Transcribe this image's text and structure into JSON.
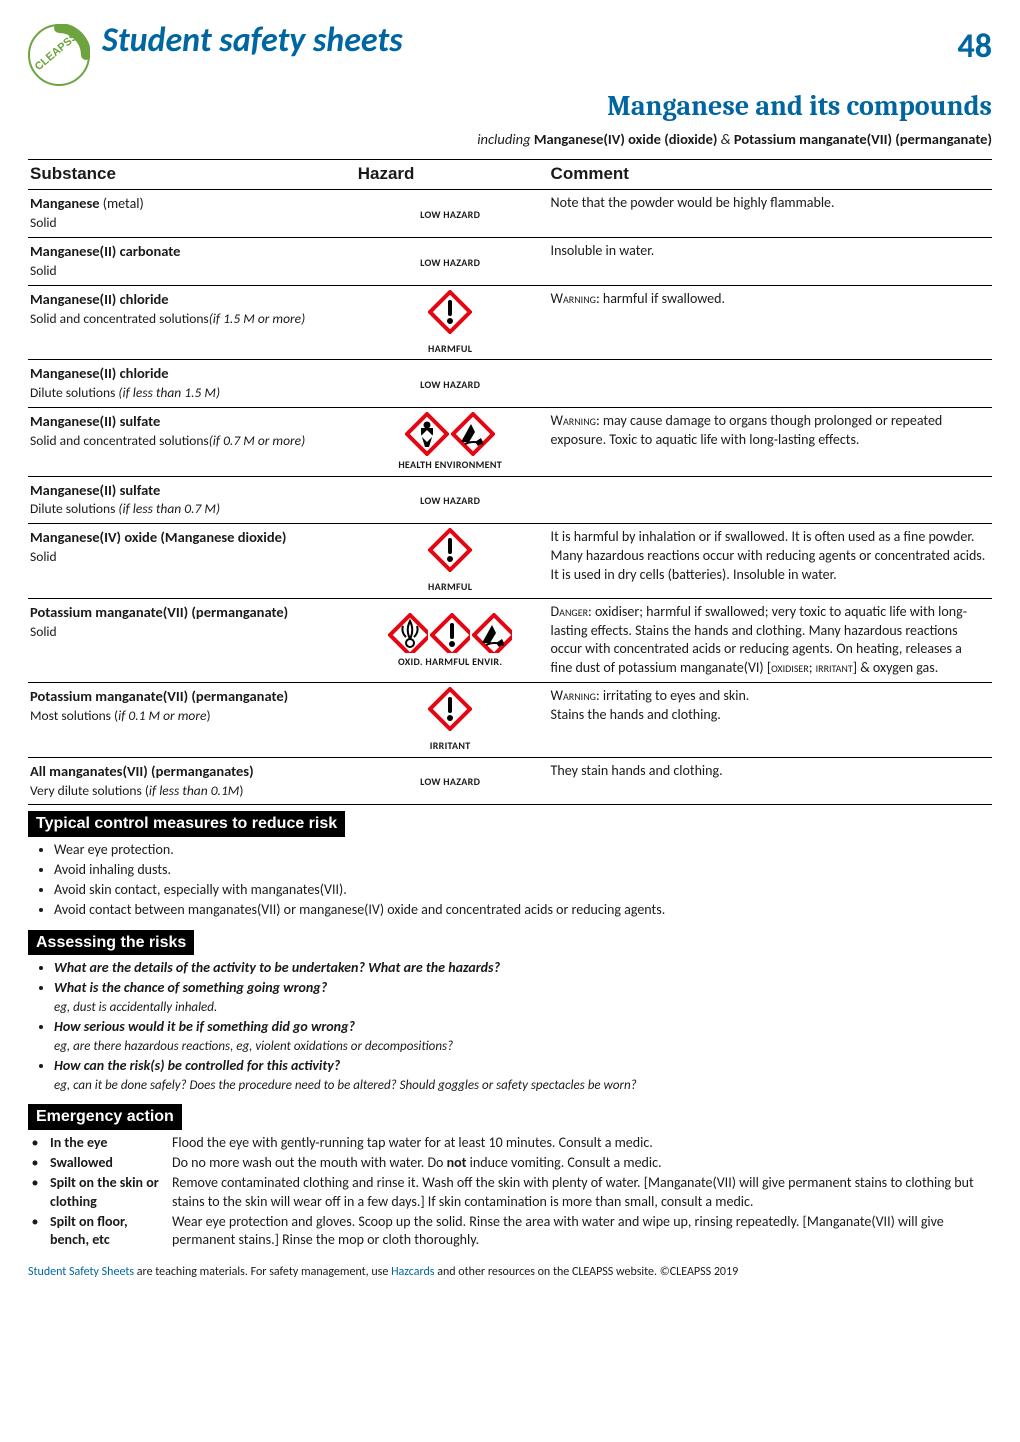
{
  "page_number": "48",
  "main_title": "Student safety sheets",
  "subtitle": "Manganese and its compounds",
  "including_prefix": "including ",
  "including_body": "Manganese(IV) oxide (dioxide) ",
  "including_amp": "& ",
  "including_tail": "Potassium manganate(VII) (permanganate)",
  "columns": {
    "c1": "Substance",
    "c2": "Hazard",
    "c3": "Comment"
  },
  "hazard_labels": {
    "low": "LOW HAZARD",
    "harmful": "HARMFUL",
    "health_env": "HEALTH  ENVIRONMENT",
    "oxid_harmful_envir": "OXID. HARMFUL ENVIR.",
    "irritant": "IRRITANT"
  },
  "rows": [
    {
      "title": "Manganese",
      "title_suffix": " (metal)",
      "desc": "Solid",
      "hazard": "low",
      "comment": "Note that the powder would be highly flammable."
    },
    {
      "title": "Manganese(II) carbonate",
      "desc": "Solid",
      "hazard": "low",
      "comment": "Insoluble in water."
    },
    {
      "title": "Manganese(II) chloride",
      "desc": "Solid and concentrated solutions",
      "desc_it": "(if 1.5 M or more)",
      "hazard": "harmful",
      "comment_sc": "Warning:",
      "comment": " harmful if swallowed."
    },
    {
      "title": "Manganese(II) chloride",
      "desc": "Dilute solutions ",
      "desc_it": "(if less than 1.5 M)",
      "hazard": "low",
      "comment": ""
    },
    {
      "title": "Manganese(II) sulfate",
      "desc": "Solid and concentrated solutions",
      "desc_it": "(if 0.7 M or more)",
      "hazard": "health_env",
      "comment_sc": "Warning:",
      "comment": " may cause damage to organs though prolonged or repeated exposure. Toxic to aquatic life with long-lasting effects."
    },
    {
      "title": "Manganese(II) sulfate",
      "desc": "Dilute solutions ",
      "desc_it": "(if less than 0.7 M)",
      "hazard": "low",
      "comment": ""
    },
    {
      "title": "Manganese(IV) oxide (Manganese dioxide)",
      "desc": "Solid",
      "hazard": "harmful",
      "comment": "It is harmful by inhalation or if swallowed. It is often used as a fine powder. Many hazardous reactions occur with reducing agents or concentrated acids.\nIt is used in dry cells (batteries). Insoluble in water."
    },
    {
      "title": "Potassium manganate(VII) (permanganate)",
      "desc": "Solid",
      "hazard": "oxid_harmful_envir",
      "comment_sc": "Danger:",
      "comment": " oxidiser; harmful if swallowed; very toxic to aquatic life with long-lasting effects. Stains the hands and clothing. Many hazardous reactions occur with concentrated acids or reducing agents. On heating, releases a fine dust of potassium manganate(VI) [oxidiser; irritant]  & oxygen gas."
    },
    {
      "title": "Potassium manganate(VII) (permanganate)",
      "desc": "Most solutions (",
      "desc_it": "if 0.1 M or more",
      "desc_tail": ")",
      "hazard": "irritant",
      "comment_sc": "Warning:",
      "comment": " irritating to eyes and skin.\nStains the hands and clothing."
    },
    {
      "title": "All manganates(VII) (permanganates)",
      "desc": "Very dilute solutions (",
      "desc_it": "if less than 0.1M",
      "desc_tail": ")",
      "hazard": "low",
      "comment": "They stain hands and clothing."
    }
  ],
  "sections": {
    "control": "Typical control measures to reduce risk",
    "assess": "Assessing the risks",
    "emergency": "Emergency action"
  },
  "control_items": [
    "Wear eye protection.",
    "Avoid inhaling dusts.",
    "Avoid skin contact, especially with manganates(VII).",
    "Avoid contact between manganates(VII) or manganese(IV) oxide and concentrated acids or reducing agents."
  ],
  "assess_items": [
    {
      "q": "What are the details of the activity to be undertaken? What are the hazards?"
    },
    {
      "q": "What is the chance of something going wrong?",
      "eg": "eg, dust is accidentally inhaled."
    },
    {
      "q": "How serious would it be if something did go wrong?",
      "eg": "eg, are there hazardous reactions, eg, violent oxidations or decompositions?"
    },
    {
      "q": "How can the risk(s) be controlled for this activity?",
      "eg": "eg, can it be done safely? Does the procedure need to be altered? Should goggles or safety spectacles be worn?"
    }
  ],
  "emergency_items": [
    {
      "label": "In the eye",
      "text": "Flood the eye with gently-running tap water for at least 10 minutes. Consult a medic."
    },
    {
      "label": "Swallowed",
      "text_pre": "Do no more wash out the mouth with water. Do ",
      "text_bold": "not",
      "text_post": " induce vomiting. Consult a medic."
    },
    {
      "label": "Spilt on the skin or clothing",
      "text": "Remove contaminated clothing and rinse it. Wash off the skin with plenty of water. [Manganate(VII) will give permanent stains to clothing but stains to the skin will wear off in a few days.] If skin contamination is more than small, consult a medic."
    },
    {
      "label": "Spilt on floor, bench, etc",
      "text": "Wear eye protection and gloves. Scoop up the solid. Rinse the area with water and wipe up, rinsing repeatedly. [Manganate(VII) will give permanent stains.] Rinse the mop or cloth thoroughly."
    }
  ],
  "footer": {
    "a": "Student Safety Sheets",
    "b": " are teaching materials. For safety management, use ",
    "c": "Hazcards",
    "d": " and other resources on the CLEAPSS website.    ©CLEAPSS 2019"
  },
  "colors": {
    "brand_blue": "#0066a1",
    "ghs_red": "#e30613",
    "logo_green": "#6da43f"
  }
}
